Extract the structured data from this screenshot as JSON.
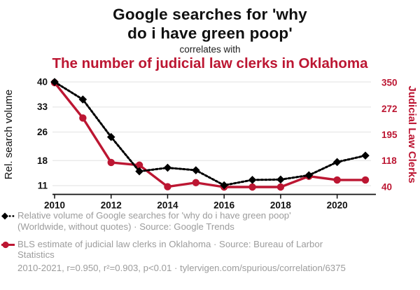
{
  "titles": {
    "black_line1": "Google searches for 'why",
    "black_line2": "do i have green poop'",
    "connector": "correlates with",
    "red": "The number of judicial law clerks in Oklahoma"
  },
  "colors": {
    "accent_red": "#bc1632",
    "series_black": "#000000",
    "legend_gray": "#9c9c9c",
    "gridline": "#ebebeb",
    "axis_black": "#111111"
  },
  "chart_data": {
    "type": "line",
    "x": [
      2010,
      2011,
      2012,
      2013,
      2014,
      2015,
      2016,
      2017,
      2018,
      2019,
      2020,
      2021
    ],
    "series": [
      {
        "name": "Relative volume of Google searches for 'why do i have green poop'",
        "axis": "left",
        "color": "#000000",
        "marker": "diamond",
        "line_style": "dashed",
        "values": [
          40,
          35.1,
          24.6,
          15,
          16,
          15.3,
          11.1,
          12.6,
          12.7,
          13.9,
          17.6,
          19.4
        ]
      },
      {
        "name": "BLS estimate of judicial law clerks in Oklahoma",
        "axis": "right",
        "color": "#bc1632",
        "marker": "circle",
        "line_style": "solid",
        "values": [
          350,
          245,
          113,
          105,
          41,
          53,
          40,
          40,
          40,
          72,
          61,
          61
        ]
      }
    ],
    "left_axis": {
      "label": "Rel. search volume",
      "ticks": [
        40,
        33,
        26,
        18,
        11
      ],
      "range": [
        11,
        40
      ]
    },
    "right_axis": {
      "label": "Judicial Law Clerks",
      "ticks": [
        350,
        272,
        195,
        118,
        40
      ],
      "range": [
        40,
        350
      ]
    },
    "x_axis": {
      "ticks": [
        2010,
        2012,
        2014,
        2016,
        2018,
        2020
      ],
      "range": [
        2010,
        2021
      ]
    },
    "grid": "horizontal",
    "legend_position": "bottom"
  },
  "legend": {
    "items": [
      {
        "marker": "black-diamond-dashed-line",
        "line1": "Relative volume of Google searches for 'why do i have green poop'",
        "line2": "(Worldwide, without quotes) · Source: Google Trends"
      },
      {
        "marker": "red-circle-solid-line",
        "line1": "BLS estimate of judicial law clerks in Oklahoma · Source: Bureau of Larbor",
        "line2": "Statistics"
      }
    ]
  },
  "footer": {
    "stats": "2010-2021, r=0.950, r²=0.903, p<0.01 · tylervigen.com/spurious/correlation/6375"
  }
}
